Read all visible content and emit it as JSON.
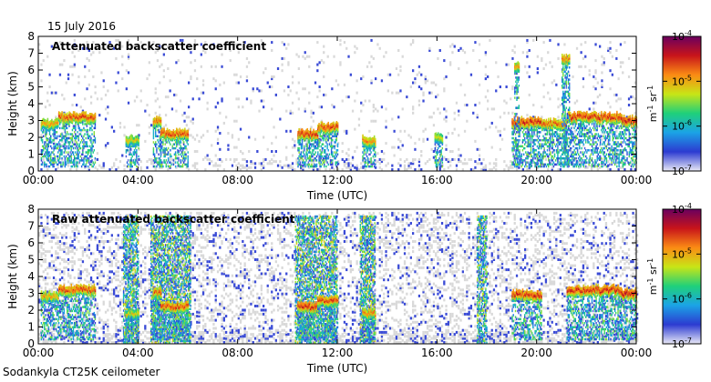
{
  "figure": {
    "date": "15 July 2016",
    "instrument": "Sodankyla CT25K ceilometer"
  },
  "colorbar": {
    "tick_labels": [
      "10-7",
      "10-6",
      "10-5",
      "10-4"
    ],
    "tick_exponents": [
      -7,
      -6,
      -5,
      -4
    ],
    "unit_label": "m-1 sr-1",
    "colors": [
      "#e9e9f6",
      "#2c3bd1",
      "#1ba3e6",
      "#1fd07a",
      "#c8e516",
      "#fb8b14",
      "#c8141a",
      "#6a005f"
    ]
  },
  "chart_data": [
    {
      "type": "heatmap",
      "title": "Attenuated backscatter coefficient",
      "xlabel": "Time (UTC)",
      "ylabel": "Height (km)",
      "xlim": [
        0,
        24
      ],
      "ylim": [
        0,
        8
      ],
      "xtick_labels": [
        "00:00",
        "04:00",
        "08:00",
        "12:00",
        "16:00",
        "20:00",
        "00:00"
      ],
      "xtick_values": [
        0,
        4,
        8,
        12,
        16,
        20,
        24
      ],
      "ytick_values": [
        0,
        1,
        2,
        3,
        4,
        5,
        6,
        7,
        8
      ],
      "cloud_layers": [
        {
          "start": 0.1,
          "end": 0.8,
          "height": 2.8,
          "log_value": -4.6
        },
        {
          "start": 0.8,
          "end": 2.3,
          "height": 3.2,
          "log_value": -4.3
        },
        {
          "start": 3.5,
          "end": 4.0,
          "height": 1.8,
          "log_value": -4.8
        },
        {
          "start": 4.6,
          "end": 4.9,
          "height": 3.0,
          "log_value": -4.4
        },
        {
          "start": 4.9,
          "end": 6.0,
          "height": 2.2,
          "log_value": -4.3
        },
        {
          "start": 10.4,
          "end": 11.2,
          "height": 2.2,
          "log_value": -4.2
        },
        {
          "start": 11.2,
          "end": 12.0,
          "height": 2.6,
          "log_value": -4.3
        },
        {
          "start": 13.0,
          "end": 13.5,
          "height": 1.8,
          "log_value": -4.5
        },
        {
          "start": 15.9,
          "end": 16.2,
          "height": 2.0,
          "log_value": -4.8
        },
        {
          "start": 19.0,
          "end": 20.2,
          "height": 2.9,
          "log_value": -4.2
        },
        {
          "start": 20.2,
          "end": 21.2,
          "height": 2.8,
          "log_value": -4.4
        },
        {
          "start": 21.2,
          "end": 23.4,
          "height": 3.2,
          "log_value": -4.2
        },
        {
          "start": 23.4,
          "end": 24.0,
          "height": 3.0,
          "log_value": -4.1
        },
        {
          "start": 19.1,
          "end": 19.3,
          "height": 6.2,
          "log_value": -4.6
        },
        {
          "start": 21.0,
          "end": 21.3,
          "height": 6.6,
          "log_value": -4.5
        }
      ],
      "background_noise": "low"
    },
    {
      "type": "heatmap",
      "title": "Raw attenuated backscatter coefficient",
      "xlabel": "Time (UTC)",
      "ylabel": "Height (km)",
      "xlim": [
        0,
        24
      ],
      "ylim": [
        0,
        8
      ],
      "xtick_labels": [
        "00:00",
        "04:00",
        "08:00",
        "12:00",
        "16:00",
        "20:00",
        "00:00"
      ],
      "xtick_values": [
        0,
        4,
        8,
        12,
        16,
        20,
        24
      ],
      "ytick_values": [
        0,
        1,
        2,
        3,
        4,
        5,
        6,
        7,
        8
      ],
      "cloud_layers": [
        {
          "start": 0.1,
          "end": 0.8,
          "height": 2.8,
          "log_value": -4.6
        },
        {
          "start": 0.8,
          "end": 2.3,
          "height": 3.2,
          "log_value": -4.3
        },
        {
          "start": 3.5,
          "end": 4.0,
          "height": 1.8,
          "log_value": -4.8
        },
        {
          "start": 4.6,
          "end": 4.9,
          "height": 3.0,
          "log_value": -4.4
        },
        {
          "start": 4.9,
          "end": 6.0,
          "height": 2.2,
          "log_value": -4.3
        },
        {
          "start": 10.4,
          "end": 11.2,
          "height": 2.2,
          "log_value": -4.2
        },
        {
          "start": 11.2,
          "end": 12.0,
          "height": 2.6,
          "log_value": -4.3
        },
        {
          "start": 13.0,
          "end": 13.5,
          "height": 1.8,
          "log_value": -4.5
        },
        {
          "start": 19.0,
          "end": 20.2,
          "height": 2.9,
          "log_value": -4.2
        },
        {
          "start": 21.2,
          "end": 23.4,
          "height": 3.2,
          "log_value": -4.2
        },
        {
          "start": 23.4,
          "end": 24.0,
          "height": 3.0,
          "log_value": -4.1
        }
      ],
      "noise_columns": [
        {
          "start": 3.4,
          "end": 4.0
        },
        {
          "start": 4.5,
          "end": 6.1
        },
        {
          "start": 10.3,
          "end": 12.0
        },
        {
          "start": 12.9,
          "end": 13.5
        },
        {
          "start": 17.6,
          "end": 18.0
        }
      ],
      "background_noise": "high"
    }
  ]
}
